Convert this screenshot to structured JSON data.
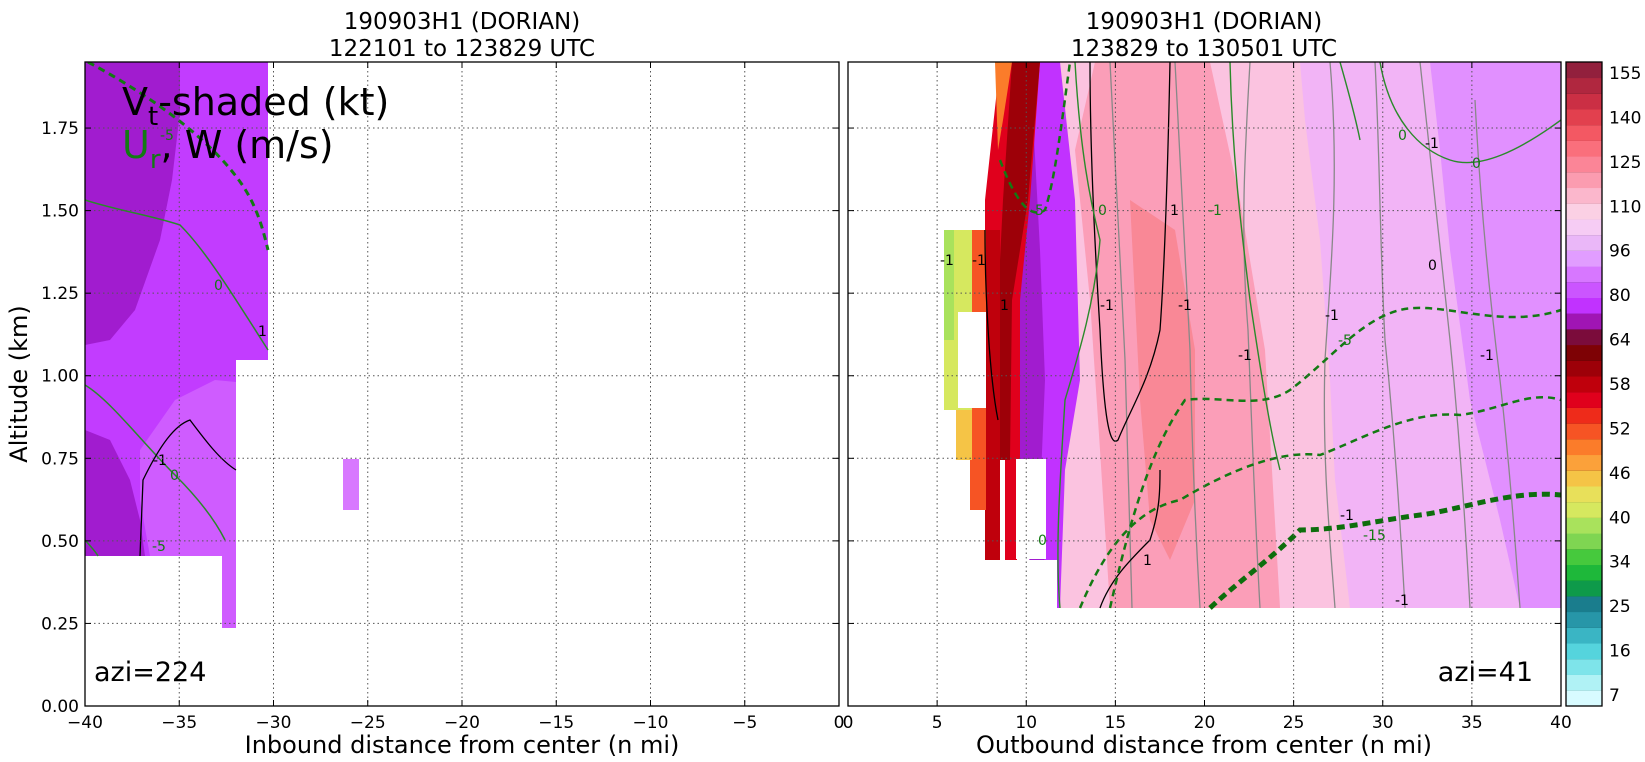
{
  "chart_data": [
    {
      "type": "contour",
      "title_line1": "190903H1 (DORIAN)",
      "title_line2": "122101 to 123829 UTC",
      "xlabel": "Inbound distance from center (n mi)",
      "ylabel": "Altitude (km)",
      "xlim": [
        -40,
        0
      ],
      "ylim": [
        0,
        1.95
      ],
      "xticks": [
        "−40",
        "−35",
        "−30",
        "−25",
        "−20",
        "−15",
        "−10",
        "−5",
        "0"
      ],
      "yticks": [
        "0.00",
        "0.25",
        "0.50",
        "0.75",
        "1.00",
        "1.25",
        "1.50",
        "1.75"
      ],
      "grid": true,
      "annotation_title": "V",
      "annotation_title_sub": "t",
      "annotation_title_rest": "-shaded (kt)",
      "annotation_sub_u": "U",
      "annotation_sub_r": "r",
      "annotation_sub_rest": ", W (m/s)",
      "azimuth_label": "azi=224",
      "contour_labels": [
        "-5",
        "0",
        "1",
        "-1",
        "0",
        "-5"
      ],
      "shaded_regions": [
        {
          "x": [
            -40,
            -30
          ],
          "y": [
            0.45,
            1.95
          ],
          "vt_kt": 70
        },
        {
          "x": [
            -26,
            -25
          ],
          "y": [
            0.6,
            0.75
          ],
          "vt_kt": 84
        }
      ]
    },
    {
      "type": "contour",
      "title_line1": "190903H1 (DORIAN)",
      "title_line2": "123829 to 130501 UTC",
      "xlabel": "Outbound distance from center (n mi)",
      "xlim": [
        0,
        40
      ],
      "ylim": [
        0,
        1.95
      ],
      "xticks": [
        "0",
        "5",
        "10",
        "15",
        "20",
        "25",
        "30",
        "35",
        "40"
      ],
      "grid": true,
      "azimuth_label": "azi=41",
      "contour_labels": [
        "0",
        "-1",
        "0",
        "-5",
        "0",
        "1",
        "-1",
        "-1",
        "-1",
        "1",
        "0",
        "-1",
        "-1",
        "-1",
        "-5",
        "-1",
        "-1",
        "-1",
        "-15",
        "1",
        "0",
        "-1"
      ],
      "shaded_regions": [
        {
          "x": [
            5,
            8
          ],
          "y": [
            0.9,
            1.35
          ],
          "vt_kt": 44
        },
        {
          "x": [
            8,
            11
          ],
          "y": [
            0.45,
            1.95
          ],
          "vt_kt": 60
        },
        {
          "x": [
            11,
            40
          ],
          "y": [
            0.3,
            1.95
          ],
          "vt_kt": 100
        }
      ]
    }
  ],
  "colorbar": {
    "tick_labels": [
      "7",
      "16",
      "25",
      "34",
      "40",
      "46",
      "52",
      "58",
      "64",
      "80",
      "96",
      "110",
      "125",
      "140",
      "155"
    ],
    "colors": [
      "#d8fbff",
      "#b0f2f5",
      "#7ee4ea",
      "#55d4dd",
      "#3ab5c4",
      "#2796a8",
      "#1a7d8d",
      "#0e9a4a",
      "#1eb83a",
      "#46c93d",
      "#7fd552",
      "#a9e25c",
      "#d6e85f",
      "#e8e05a",
      "#f5c446",
      "#fba13a",
      "#fb7c2a",
      "#f65424",
      "#ee2b1a",
      "#e0001c",
      "#bf000c",
      "#9d0008",
      "#7e0205",
      "#7b0c3b",
      "#a015b4",
      "#c132ff",
      "#cb55ff",
      "#d777ff",
      "#e19dff",
      "#eab7f8",
      "#f6ccf4",
      "#fbd0e4",
      "#fbb7cc",
      "#fb9cb0",
      "#fb8597",
      "#fa6f7c",
      "#f35863",
      "#e2404e",
      "#cb2f44",
      "#b0273f",
      "#92203d"
    ]
  }
}
